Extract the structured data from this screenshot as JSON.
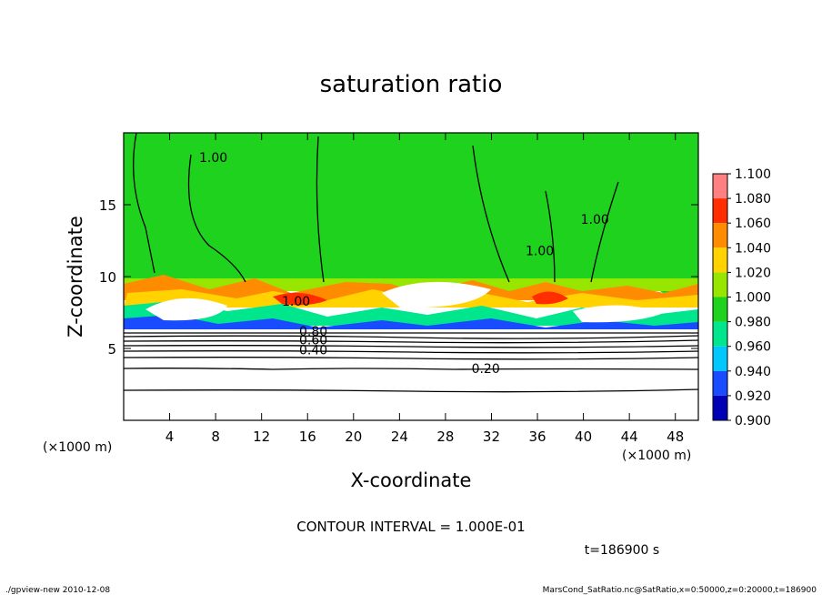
{
  "chart_data": {
    "type": "heatmap",
    "title": "saturation ratio",
    "xlabel": "X-coordinate",
    "ylabel": "Z-coordinate",
    "x_unit_label_left": "(×1000 m)",
    "x_unit_label_right": "(×1000 m)",
    "xlim": [
      0,
      50
    ],
    "ylim": [
      0,
      20
    ],
    "x_ticks": [
      4,
      8,
      12,
      16,
      20,
      24,
      28,
      32,
      36,
      40,
      44,
      48
    ],
    "y_ticks": [
      5,
      10,
      15
    ],
    "colorbar": {
      "levels": [
        "0.900",
        "0.920",
        "0.940",
        "0.960",
        "0.980",
        "1.000",
        "1.020",
        "1.040",
        "1.060",
        "1.080",
        "1.100"
      ],
      "colors": [
        "#7b00b4",
        "#0000b4",
        "#1a4cff",
        "#00c8ff",
        "#00e68c",
        "#1ed21e",
        "#96e600",
        "#ffd200",
        "#ff8c00",
        "#ff2d00",
        "#ff8080"
      ]
    },
    "contour_labels": [
      {
        "text": "1.00",
        "x": 7.8,
        "z": 18.3
      },
      {
        "text": "1.00",
        "x": 41.0,
        "z": 14.0
      },
      {
        "text": "1.00",
        "x": 36.2,
        "z": 11.8
      },
      {
        "text": "1.00",
        "x": 15.0,
        "z": 8.3
      },
      {
        "text": "0.80",
        "x": 16.5,
        "z": 6.2
      },
      {
        "text": "0.60",
        "x": 16.5,
        "z": 5.6
      },
      {
        "text": "0.40",
        "x": 16.5,
        "z": 4.9
      },
      {
        "text": "0.20",
        "x": 31.5,
        "z": 3.6
      }
    ],
    "contour_interval": "CONTOUR INTERVAL = 1.000E-01",
    "time_label": "t=186900 s",
    "grid": false
  },
  "footer": {
    "left": "./gpview-new   2010-12-08",
    "right": "MarsCond_SatRatio.nc@SatRatio,x=0:50000,z=0:20000,t=186900"
  },
  "colors": {
    "field_main": "#1ed21e",
    "lower_layer": "#ffffff",
    "contour": "#000000"
  }
}
